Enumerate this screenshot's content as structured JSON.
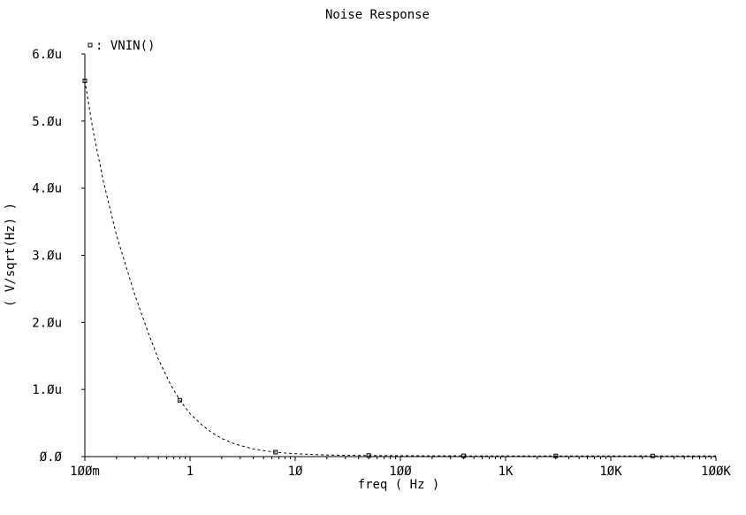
{
  "chart_data": {
    "type": "line",
    "title": "Noise Response",
    "xlabel": "freq ( Hz )",
    "ylabel": "( V/sqrt(Hz) )",
    "x_scale": "log",
    "xlim": [
      0.1,
      100000
    ],
    "ylim": [
      0,
      6e-06
    ],
    "grid": false,
    "x_ticks": [
      {
        "value": 0.1,
        "label": "1ØØm"
      },
      {
        "value": 1,
        "label": "1"
      },
      {
        "value": 10,
        "label": "1Ø"
      },
      {
        "value": 100,
        "label": "1ØØ"
      },
      {
        "value": 1000,
        "label": "1K"
      },
      {
        "value": 10000,
        "label": "1ØK"
      },
      {
        "value": 100000,
        "label": "1ØØK"
      }
    ],
    "y_ticks": [
      {
        "value": 0,
        "label": "Ø.Ø"
      },
      {
        "value": 1e-06,
        "label": "1.Øu"
      },
      {
        "value": 2e-06,
        "label": "2.Øu"
      },
      {
        "value": 3e-06,
        "label": "3.Øu"
      },
      {
        "value": 4e-06,
        "label": "4.Øu"
      },
      {
        "value": 5e-06,
        "label": "5.Øu"
      },
      {
        "value": 6e-06,
        "label": "6.Øu"
      }
    ],
    "series": [
      {
        "name": "VNIN()",
        "legend_label": ": VNIN()",
        "style": "dashed",
        "x": [
          0.1,
          0.12,
          0.15,
          0.2,
          0.25,
          0.3,
          0.4,
          0.5,
          0.65,
          0.8,
          1.0,
          1.3,
          1.6,
          2.0,
          2.5,
          3.0,
          4.0,
          5.0,
          6.5,
          8.0,
          10,
          13,
          16,
          20,
          25,
          30,
          40,
          50,
          65,
          80,
          100,
          200,
          500,
          1000,
          3000,
          10000,
          30000,
          100000
        ],
        "values": [
          5.6e-06,
          4.85e-06,
          4.1e-06,
          3.3e-06,
          2.8e-06,
          2.4e-06,
          1.85e-06,
          1.45e-06,
          1.08e-06,
          8.4e-07,
          6.4e-07,
          4.7e-07,
          3.6e-07,
          2.7e-07,
          2.05e-07,
          1.65e-07,
          1.15e-07,
          8.8e-08,
          6.6e-08,
          5.3e-08,
          4.3e-08,
          3.4e-08,
          2.9e-08,
          2.4e-08,
          2.1e-08,
          1.9e-08,
          1.7e-08,
          1.6e-08,
          1.5e-08,
          1.4e-08,
          1.3e-08,
          1.2e-08,
          1.1e-08,
          1.05e-08,
          1.02e-08,
          1e-08,
          1e-08,
          1e-08
        ],
        "markers_x": [
          0.1,
          0.8,
          6.5,
          50,
          400,
          3000,
          25000
        ]
      }
    ]
  }
}
